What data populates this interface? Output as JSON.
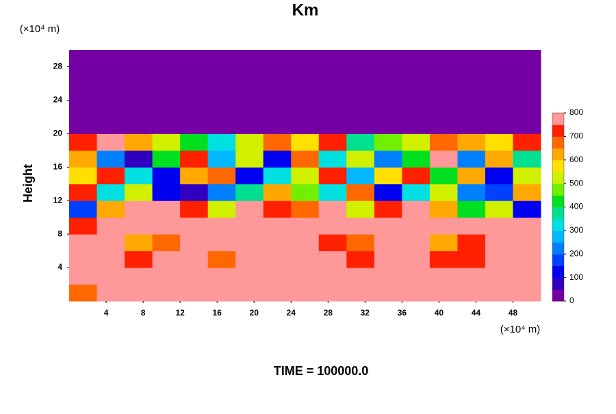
{
  "chart_data": {
    "type": "heatmap",
    "title": "Km",
    "y_unit_label": "(×10⁴ m)",
    "x_unit_label": "(×10⁴ m)",
    "ylabel": "Height",
    "footer": "TIME = 100000.0",
    "x": [
      1.5,
      4.5,
      7.5,
      10.5,
      13.5,
      16.5,
      19.5,
      22.5,
      25.5,
      28.5,
      31.5,
      34.5,
      37.5,
      40.5,
      43.5,
      46.5,
      49.5
    ],
    "y": [
      1,
      3,
      5,
      7,
      9,
      11,
      13,
      15,
      17,
      19,
      21,
      23,
      25,
      27,
      29
    ],
    "z": [
      [
        650,
        800,
        800,
        800,
        800,
        800,
        800,
        800,
        800,
        800,
        800,
        800,
        800,
        800,
        750,
        800,
        800
      ],
      [
        800,
        800,
        800,
        750,
        800,
        800,
        800,
        800,
        800,
        780,
        800,
        800,
        800,
        800,
        800,
        800,
        800
      ],
      [
        800,
        800,
        700,
        750,
        800,
        650,
        800,
        800,
        800,
        750,
        700,
        800,
        800,
        700,
        720,
        800,
        800
      ],
      [
        760,
        800,
        600,
        650,
        750,
        800,
        800,
        800,
        800,
        700,
        650,
        800,
        800,
        640,
        700,
        800,
        800
      ],
      [
        700,
        800,
        800,
        800,
        800,
        800,
        750,
        800,
        800,
        800,
        800,
        800,
        800,
        800,
        800,
        800,
        800
      ],
      [
        150,
        600,
        750,
        800,
        700,
        500,
        750,
        700,
        650,
        800,
        500,
        700,
        800,
        600,
        400,
        500,
        100
      ],
      [
        700,
        300,
        500,
        100,
        50,
        200,
        350,
        600,
        450,
        300,
        650,
        100,
        300,
        500,
        200,
        150,
        600
      ],
      [
        550,
        700,
        300,
        100,
        600,
        650,
        100,
        300,
        500,
        700,
        250,
        550,
        700,
        400,
        600,
        100,
        500
      ],
      [
        600,
        200,
        50,
        400,
        700,
        250,
        500,
        100,
        650,
        300,
        500,
        200,
        400,
        750,
        200,
        600,
        350
      ],
      [
        700,
        750,
        600,
        500,
        400,
        300,
        500,
        650,
        550,
        700,
        350,
        450,
        500,
        650,
        600,
        550,
        700
      ],
      [
        0,
        0,
        0,
        0,
        0,
        0,
        0,
        0,
        0,
        0,
        0,
        0,
        0,
        0,
        0,
        0,
        0
      ],
      [
        0,
        0,
        0,
        0,
        0,
        0,
        0,
        0,
        0,
        0,
        0,
        0,
        0,
        0,
        0,
        0,
        0
      ],
      [
        0,
        0,
        0,
        0,
        0,
        0,
        0,
        0,
        0,
        0,
        0,
        0,
        0,
        0,
        0,
        0,
        0
      ],
      [
        0,
        0,
        0,
        0,
        0,
        0,
        0,
        0,
        0,
        0,
        0,
        0,
        0,
        0,
        0,
        0,
        0
      ],
      [
        0,
        0,
        0,
        0,
        0,
        0,
        0,
        0,
        0,
        0,
        0,
        0,
        0,
        0,
        0,
        0,
        0
      ]
    ],
    "xlim": [
      0,
      51
    ],
    "ylim": [
      0,
      30
    ],
    "xticks": [
      4,
      8,
      12,
      16,
      20,
      24,
      28,
      32,
      36,
      40,
      44,
      48
    ],
    "yticks": [
      4,
      8,
      12,
      16,
      20,
      24,
      28
    ],
    "colorbar_lim": [
      0,
      800
    ],
    "colorbar_ticks": [
      0,
      100,
      200,
      300,
      400,
      500,
      600,
      700,
      800
    ],
    "colors": [
      "#7400a4",
      "#3000c0",
      "#0000f0",
      "#0040ff",
      "#0080ff",
      "#00b8ff",
      "#00e0e0",
      "#00e090",
      "#00e020",
      "#70f000",
      "#d0f000",
      "#ffe000",
      "#ffa800",
      "#ff6800",
      "#ff2000",
      "#ff9898"
    ]
  }
}
